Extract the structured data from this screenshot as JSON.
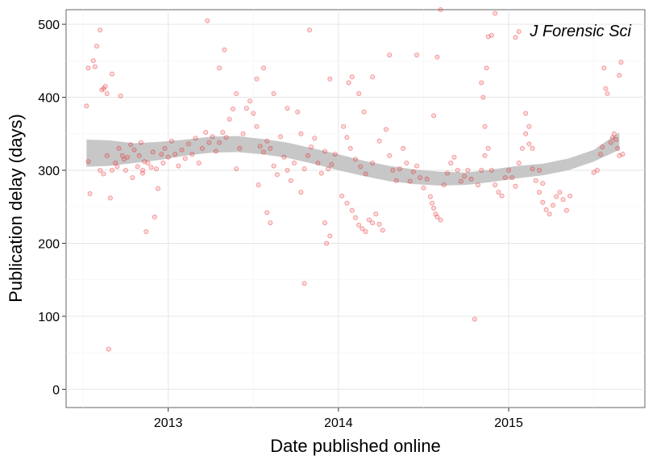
{
  "chart_data": {
    "type": "scatter",
    "title": "",
    "annotation": "J Forensic Sci",
    "xlabel": "Date published online",
    "ylabel": "Publication delay (days)",
    "x_ticks": [
      2013,
      2014,
      2015
    ],
    "y_ticks": [
      0,
      100,
      200,
      300,
      400,
      500
    ],
    "xlim": [
      2012.4,
      2015.8
    ],
    "ylim": [
      -25,
      520
    ],
    "grid": true,
    "legend": "none",
    "point_color": "#e8191d",
    "band_color": "#c4c4c4",
    "smooth": {
      "x": [
        2012.52,
        2012.65,
        2012.8,
        2012.95,
        2013.1,
        2013.25,
        2013.4,
        2013.55,
        2013.7,
        2013.85,
        2014.0,
        2014.15,
        2014.3,
        2014.45,
        2014.6,
        2014.75,
        2014.9,
        2015.05,
        2015.2,
        2015.35,
        2015.5,
        2015.65
      ],
      "lower": [
        305,
        306,
        310,
        314,
        320,
        324,
        325,
        322,
        317,
        309,
        300,
        292,
        285,
        281,
        279,
        280,
        284,
        289,
        293,
        300,
        312,
        328
      ],
      "upper": [
        342,
        341,
        337,
        339,
        342,
        346,
        347,
        343,
        338,
        330,
        322,
        313,
        306,
        301,
        298,
        297,
        301,
        306,
        309,
        316,
        328,
        352
      ]
    },
    "points": [
      [
        2012.52,
        388
      ],
      [
        2012.53,
        440
      ],
      [
        2012.53,
        312
      ],
      [
        2012.54,
        268
      ],
      [
        2012.56,
        450
      ],
      [
        2012.57,
        442
      ],
      [
        2012.58,
        470
      ],
      [
        2012.6,
        492
      ],
      [
        2012.61,
        410
      ],
      [
        2012.62,
        412
      ],
      [
        2012.63,
        415
      ],
      [
        2012.64,
        405
      ],
      [
        2012.6,
        300
      ],
      [
        2012.62,
        295
      ],
      [
        2012.64,
        320
      ],
      [
        2012.65,
        55
      ],
      [
        2012.66,
        262
      ],
      [
        2012.67,
        300
      ],
      [
        2012.67,
        432
      ],
      [
        2012.69,
        310
      ],
      [
        2012.7,
        305
      ],
      [
        2012.71,
        330
      ],
      [
        2012.72,
        402
      ],
      [
        2012.73,
        320
      ],
      [
        2012.74,
        315
      ],
      [
        2012.75,
        300
      ],
      [
        2012.76,
        318
      ],
      [
        2012.78,
        335
      ],
      [
        2012.79,
        290
      ],
      [
        2012.8,
        328
      ],
      [
        2012.82,
        305
      ],
      [
        2012.83,
        320
      ],
      [
        2012.84,
        338
      ],
      [
        2012.85,
        300
      ],
      [
        2012.85,
        296
      ],
      [
        2012.86,
        312
      ],
      [
        2012.87,
        216
      ],
      [
        2012.88,
        310
      ],
      [
        2012.9,
        304
      ],
      [
        2012.91,
        325
      ],
      [
        2012.92,
        236
      ],
      [
        2012.93,
        302
      ],
      [
        2012.94,
        275
      ],
      [
        2012.96,
        322
      ],
      [
        2012.97,
        310
      ],
      [
        2012.98,
        330
      ],
      [
        2013.0,
        318
      ],
      [
        2013.02,
        340
      ],
      [
        2013.04,
        322
      ],
      [
        2013.06,
        306
      ],
      [
        2013.08,
        328
      ],
      [
        2013.1,
        316
      ],
      [
        2013.12,
        336
      ],
      [
        2013.14,
        322
      ],
      [
        2013.16,
        344
      ],
      [
        2013.18,
        310
      ],
      [
        2013.2,
        330
      ],
      [
        2013.22,
        352
      ],
      [
        2013.24,
        338
      ],
      [
        2013.26,
        346
      ],
      [
        2013.28,
        326
      ],
      [
        2013.3,
        338
      ],
      [
        2013.32,
        352
      ],
      [
        2013.34,
        345
      ],
      [
        2013.36,
        370
      ],
      [
        2013.38,
        384
      ],
      [
        2013.4,
        302
      ],
      [
        2013.42,
        330
      ],
      [
        2013.44,
        350
      ],
      [
        2013.46,
        385
      ],
      [
        2013.48,
        395
      ],
      [
        2013.5,
        378
      ],
      [
        2013.52,
        360
      ],
      [
        2013.54,
        333
      ],
      [
        2013.56,
        325
      ],
      [
        2013.58,
        340
      ],
      [
        2013.6,
        330
      ],
      [
        2013.62,
        306
      ],
      [
        2013.64,
        294
      ],
      [
        2013.66,
        346
      ],
      [
        2013.68,
        318
      ],
      [
        2013.7,
        300
      ],
      [
        2013.72,
        286
      ],
      [
        2013.74,
        310
      ],
      [
        2013.76,
        380
      ],
      [
        2013.78,
        350
      ],
      [
        2013.8,
        302
      ],
      [
        2013.82,
        320
      ],
      [
        2013.84,
        332
      ],
      [
        2013.86,
        344
      ],
      [
        2013.88,
        310
      ],
      [
        2013.9,
        296
      ],
      [
        2013.92,
        326
      ],
      [
        2013.94,
        302
      ],
      [
        2013.96,
        308
      ],
      [
        2013.98,
        322
      ],
      [
        2013.23,
        505
      ],
      [
        2013.3,
        440
      ],
      [
        2013.33,
        465
      ],
      [
        2013.4,
        405
      ],
      [
        2013.52,
        425
      ],
      [
        2013.56,
        440
      ],
      [
        2013.62,
        405
      ],
      [
        2013.7,
        385
      ],
      [
        2013.8,
        145
      ],
      [
        2013.83,
        492
      ],
      [
        2013.95,
        425
      ],
      [
        2013.95,
        210
      ],
      [
        2013.93,
        200
      ],
      [
        2013.58,
        242
      ],
      [
        2013.6,
        228
      ],
      [
        2013.53,
        280
      ],
      [
        2013.78,
        270
      ],
      [
        2013.92,
        228
      ],
      [
        2014.02,
        265
      ],
      [
        2014.05,
        255
      ],
      [
        2014.08,
        245
      ],
      [
        2014.1,
        235
      ],
      [
        2014.12,
        225
      ],
      [
        2014.14,
        220
      ],
      [
        2014.16,
        216
      ],
      [
        2014.18,
        232
      ],
      [
        2014.2,
        228
      ],
      [
        2014.22,
        240
      ],
      [
        2014.24,
        226
      ],
      [
        2014.26,
        218
      ],
      [
        2014.06,
        420
      ],
      [
        2014.08,
        428
      ],
      [
        2014.12,
        405
      ],
      [
        2014.15,
        380
      ],
      [
        2014.03,
        360
      ],
      [
        2014.05,
        345
      ],
      [
        2014.07,
        330
      ],
      [
        2014.1,
        315
      ],
      [
        2014.13,
        305
      ],
      [
        2014.16,
        295
      ],
      [
        2014.2,
        310
      ],
      [
        2014.24,
        340
      ],
      [
        2014.28,
        356
      ],
      [
        2014.3,
        320
      ],
      [
        2014.32,
        300
      ],
      [
        2014.34,
        286
      ],
      [
        2014.36,
        302
      ],
      [
        2014.38,
        330
      ],
      [
        2014.4,
        310
      ],
      [
        2014.42,
        285
      ],
      [
        2014.44,
        298
      ],
      [
        2014.46,
        306
      ],
      [
        2014.48,
        290
      ],
      [
        2014.5,
        276
      ],
      [
        2014.52,
        288
      ],
      [
        2014.54,
        264
      ],
      [
        2014.55,
        255
      ],
      [
        2014.56,
        248
      ],
      [
        2014.57,
        240
      ],
      [
        2014.58,
        236
      ],
      [
        2014.6,
        232
      ],
      [
        2014.62,
        280
      ],
      [
        2014.64,
        296
      ],
      [
        2014.66,
        310
      ],
      [
        2014.68,
        318
      ],
      [
        2014.7,
        300
      ],
      [
        2014.72,
        285
      ],
      [
        2014.74,
        292
      ],
      [
        2014.76,
        300
      ],
      [
        2014.78,
        288
      ],
      [
        2014.8,
        96
      ],
      [
        2014.82,
        280
      ],
      [
        2014.84,
        300
      ],
      [
        2014.86,
        320
      ],
      [
        2014.88,
        330
      ],
      [
        2014.9,
        300
      ],
      [
        2014.92,
        280
      ],
      [
        2014.94,
        270
      ],
      [
        2014.96,
        265
      ],
      [
        2014.98,
        290
      ],
      [
        2014.87,
        440
      ],
      [
        2014.88,
        483
      ],
      [
        2014.9,
        485
      ],
      [
        2014.92,
        515
      ],
      [
        2014.6,
        520
      ],
      [
        2014.56,
        375
      ],
      [
        2014.58,
        455
      ],
      [
        2014.46,
        458
      ],
      [
        2014.3,
        458
      ],
      [
        2014.2,
        428
      ],
      [
        2014.85,
        400
      ],
      [
        2014.84,
        420
      ],
      [
        2014.86,
        360
      ],
      [
        2015.0,
        300
      ],
      [
        2015.02,
        290
      ],
      [
        2015.04,
        278
      ],
      [
        2015.06,
        310
      ],
      [
        2015.08,
        330
      ],
      [
        2015.1,
        350
      ],
      [
        2015.12,
        336
      ],
      [
        2015.14,
        302
      ],
      [
        2015.16,
        286
      ],
      [
        2015.18,
        270
      ],
      [
        2015.2,
        256
      ],
      [
        2015.22,
        246
      ],
      [
        2015.24,
        240
      ],
      [
        2015.26,
        252
      ],
      [
        2015.28,
        264
      ],
      [
        2015.3,
        270
      ],
      [
        2015.32,
        260
      ],
      [
        2015.34,
        245
      ],
      [
        2015.36,
        265
      ],
      [
        2015.1,
        378
      ],
      [
        2015.12,
        360
      ],
      [
        2015.06,
        490
      ],
      [
        2015.04,
        482
      ],
      [
        2015.14,
        330
      ],
      [
        2015.18,
        300
      ],
      [
        2015.2,
        282
      ],
      [
        2015.5,
        297
      ],
      [
        2015.52,
        300
      ],
      [
        2015.54,
        322
      ],
      [
        2015.55,
        332
      ],
      [
        2015.56,
        440
      ],
      [
        2015.57,
        412
      ],
      [
        2015.58,
        405
      ],
      [
        2015.6,
        338
      ],
      [
        2015.61,
        345
      ],
      [
        2015.62,
        350
      ],
      [
        2015.63,
        342
      ],
      [
        2015.64,
        330
      ],
      [
        2015.65,
        320
      ],
      [
        2015.66,
        448
      ],
      [
        2015.67,
        322
      ],
      [
        2015.65,
        430
      ]
    ]
  }
}
